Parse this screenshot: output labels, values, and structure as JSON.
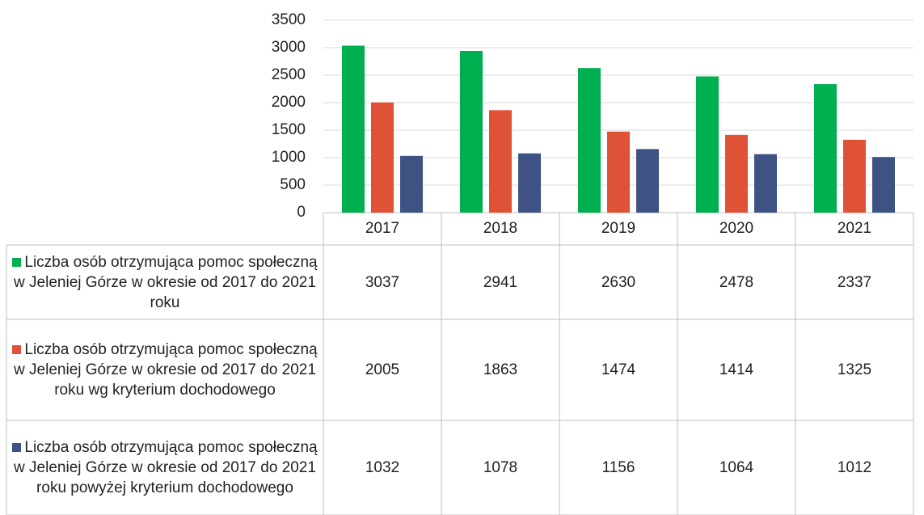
{
  "chart_data": {
    "type": "bar",
    "categories": [
      "2017",
      "2018",
      "2019",
      "2020",
      "2021"
    ],
    "series": [
      {
        "name": "Liczba osób otrzymująca pomoc społeczną w Jeleniej Górze w okresie od 2017 do 2021 roku",
        "color": "#00b050",
        "values": [
          3037,
          2941,
          2630,
          2478,
          2337
        ]
      },
      {
        "name": "Liczba osób otrzymująca pomoc społeczną w Jeleniej Górze w okresie od 2017 do 2021 roku wg kryterium dochodowego",
        "color": "#e05238",
        "values": [
          2005,
          1863,
          1474,
          1414,
          1325
        ]
      },
      {
        "name": "Liczba osób otrzymująca pomoc społeczną w Jeleniej Górze w okresie od 2017 do 2021 roku powyżej kryterium dochodowego",
        "color": "#3f5284",
        "values": [
          1032,
          1078,
          1156,
          1064,
          1012
        ]
      }
    ],
    "ylim": [
      0,
      3500
    ],
    "yticks": [
      0,
      500,
      1000,
      1500,
      2000,
      2500,
      3000,
      3500
    ],
    "grid": true
  }
}
